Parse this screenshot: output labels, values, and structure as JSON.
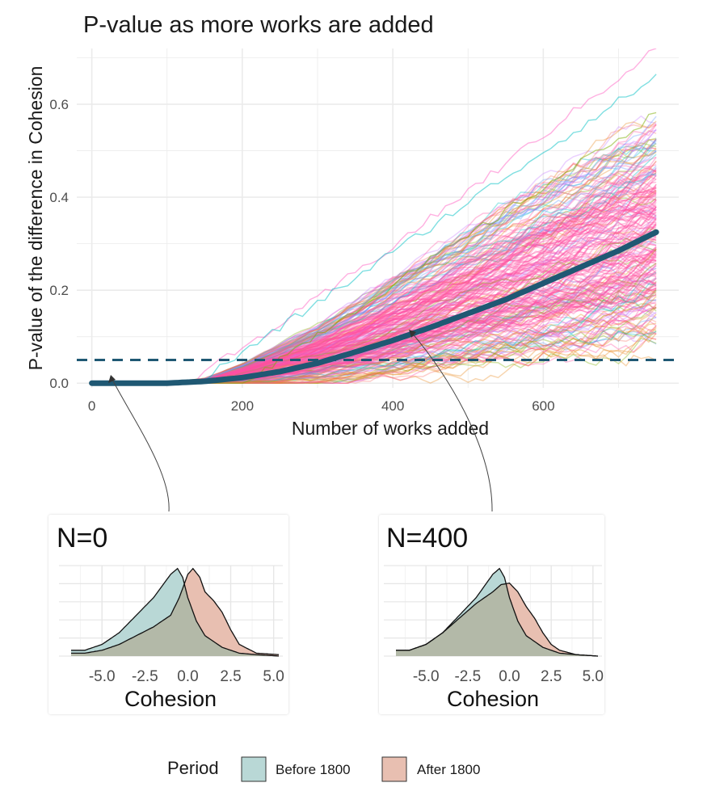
{
  "chart_data": [
    {
      "type": "line",
      "title": "P-value as more works are added",
      "xlabel": "Number of works added",
      "ylabel": "P-value of the difference in Cohesion",
      "xlim": [
        -20,
        780
      ],
      "ylim": [
        -0.01,
        0.72
      ],
      "xticks": [
        0,
        200,
        400,
        600
      ],
      "yticks": [
        0.0,
        0.2,
        0.4,
        0.6
      ],
      "xtick_labels": [
        "0",
        "200",
        "400",
        "600"
      ],
      "ytick_labels": [
        "0.0",
        "0.2",
        "0.4",
        "0.6"
      ],
      "grid": true,
      "threshold": {
        "y": 0.05,
        "style": "dashed",
        "color": "#1f5873"
      },
      "mean_curve": {
        "name": "mean p-value",
        "color": "#1f5873",
        "x": [
          0,
          50,
          100,
          150,
          200,
          250,
          300,
          350,
          400,
          450,
          500,
          550,
          600,
          650,
          700,
          750
        ],
        "y": [
          0.0,
          0.0,
          0.0,
          0.004,
          0.012,
          0.025,
          0.043,
          0.067,
          0.092,
          0.12,
          0.15,
          0.18,
          0.215,
          0.25,
          0.285,
          0.325
        ]
      },
      "simulation_band": {
        "description": "many bootstrapped simulation runs",
        "x": [
          0,
          100,
          150,
          200,
          250,
          300,
          350,
          400,
          450,
          500,
          550,
          600,
          650,
          700,
          750
        ],
        "upper": [
          0.0,
          0.0,
          0.01,
          0.04,
          0.08,
          0.12,
          0.17,
          0.22,
          0.27,
          0.32,
          0.37,
          0.42,
          0.47,
          0.52,
          0.56
        ],
        "lower": [
          0.0,
          0.0,
          0.0,
          0.0,
          0.0,
          0.005,
          0.01,
          0.02,
          0.03,
          0.04,
          0.05,
          0.06,
          0.07,
          0.085,
          0.1
        ],
        "outlier_max": 0.72,
        "colors": [
          "#ff4fa3",
          "#f8766d",
          "#619cff",
          "#00bfc4",
          "#7cae00",
          "#c77cff",
          "#e7861b"
        ]
      },
      "annotations": [
        {
          "label": "N=0",
          "x": 0,
          "y": 0.0
        },
        {
          "label": "N=400",
          "x": 400,
          "y": 0.092
        }
      ]
    },
    {
      "type": "area",
      "title": "N=0",
      "xlabel": "Cohesion",
      "ylabel": "",
      "xlim": [
        -7,
        5.3
      ],
      "xticks": [
        -5.0,
        -2.5,
        0.0,
        2.5,
        5.0
      ],
      "xtick_labels": [
        "-5.0",
        "-2.5",
        "0.0",
        "2.5",
        "5.0"
      ],
      "series": [
        {
          "name": "Before 1800",
          "x": [
            -7,
            -6,
            -5,
            -4,
            -3,
            -2,
            -1.5,
            -1,
            -0.6,
            -0.3,
            0,
            0.5,
            1,
            2,
            3,
            4,
            5.3
          ],
          "y": [
            0.02,
            0.02,
            0.04,
            0.08,
            0.14,
            0.2,
            0.24,
            0.28,
            0.3,
            0.27,
            0.2,
            0.12,
            0.07,
            0.03,
            0.01,
            0.005,
            0.0
          ]
        },
        {
          "name": "After 1800",
          "x": [
            -7,
            -6,
            -5,
            -4,
            -3,
            -2,
            -1,
            -0.5,
            0,
            0.3,
            0.7,
            1,
            1.5,
            2,
            2.5,
            3,
            4,
            5.3
          ],
          "y": [
            0.01,
            0.01,
            0.02,
            0.04,
            0.07,
            0.1,
            0.14,
            0.2,
            0.28,
            0.3,
            0.27,
            0.22,
            0.19,
            0.15,
            0.09,
            0.04,
            0.01,
            0.005
          ]
        }
      ]
    },
    {
      "type": "area",
      "title": "N=400",
      "xlabel": "Cohesion",
      "ylabel": "",
      "xlim": [
        -7,
        5.3
      ],
      "xticks": [
        -5.0,
        -2.5,
        0.0,
        2.5,
        5.0
      ],
      "xtick_labels": [
        "-5.0",
        "-2.5",
        "0.0",
        "2.5",
        "5.0"
      ],
      "series": [
        {
          "name": "Before 1800",
          "x": [
            -7,
            -6,
            -5,
            -4,
            -3,
            -2,
            -1.5,
            -1,
            -0.6,
            -0.3,
            0,
            0.5,
            1,
            2,
            3,
            4,
            5.3
          ],
          "y": [
            0.02,
            0.02,
            0.04,
            0.08,
            0.14,
            0.2,
            0.24,
            0.28,
            0.3,
            0.27,
            0.2,
            0.12,
            0.07,
            0.03,
            0.01,
            0.005,
            0.0
          ]
        },
        {
          "name": "After 1800",
          "x": [
            -7,
            -6,
            -5,
            -4,
            -3,
            -2,
            -1,
            -0.5,
            0,
            0.5,
            1,
            1.5,
            2,
            2.5,
            3,
            4,
            5.3
          ],
          "y": [
            0.02,
            0.02,
            0.04,
            0.08,
            0.13,
            0.18,
            0.22,
            0.245,
            0.25,
            0.22,
            0.17,
            0.13,
            0.08,
            0.04,
            0.02,
            0.005,
            0.0
          ]
        }
      ]
    }
  ],
  "legend": {
    "title": "Period",
    "position": "bottom",
    "items": [
      {
        "label": "Before 1800",
        "color": "#b9d8d6"
      },
      {
        "label": "After 1800",
        "color": "#e8bfb1"
      }
    ]
  },
  "colors": {
    "before_fill": "#b9d8d6",
    "after_fill": "#e8bfb1",
    "overlap_fill": "#b3b9a8",
    "mean_line": "#1f5873",
    "grid": "#ebebeb"
  }
}
